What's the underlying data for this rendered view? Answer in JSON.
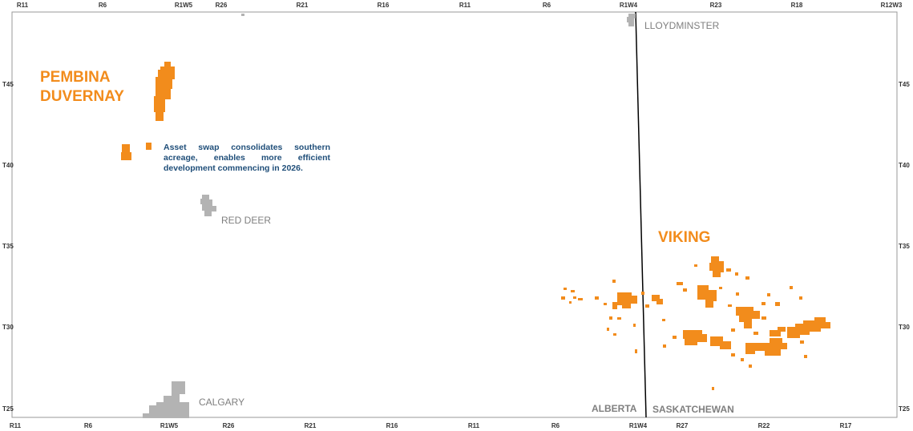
{
  "colors": {
    "acreage": "#f28c1c",
    "city": "#b3b3b3",
    "note_text": "#1f4e79"
  },
  "top_ticks": [
    "R11",
    "R6",
    "R1W5",
    "R26",
    "R21",
    "R16",
    "R11",
    "R6",
    "R1W4",
    "R23",
    "R18",
    "R12W3"
  ],
  "bottom_ticks": [
    "R11",
    "R6",
    "R1W5",
    "R26",
    "R21",
    "R16",
    "R11",
    "R6",
    "R1W4",
    "R27",
    "R22",
    "R17"
  ],
  "left_ticks": [
    "T45",
    "T40",
    "T35",
    "T30",
    "T25"
  ],
  "right_ticks": [
    "T45",
    "T40",
    "T35",
    "T30",
    "T25"
  ],
  "cities": {
    "lloydminster": "LLOYDMINSTER",
    "red_deer": "RED DEER",
    "calgary": "CALGARY"
  },
  "plays": {
    "pembina_line1": "PEMBINA",
    "pembina_line2": "DUVERNAY",
    "viking": "VIKING"
  },
  "provinces": {
    "alberta": "ALBERTA",
    "saskatchewan": "SASKATCHEWAN"
  },
  "note": "Asset swap consolidates southern acreage, enables more efficient development commencing in 2026."
}
